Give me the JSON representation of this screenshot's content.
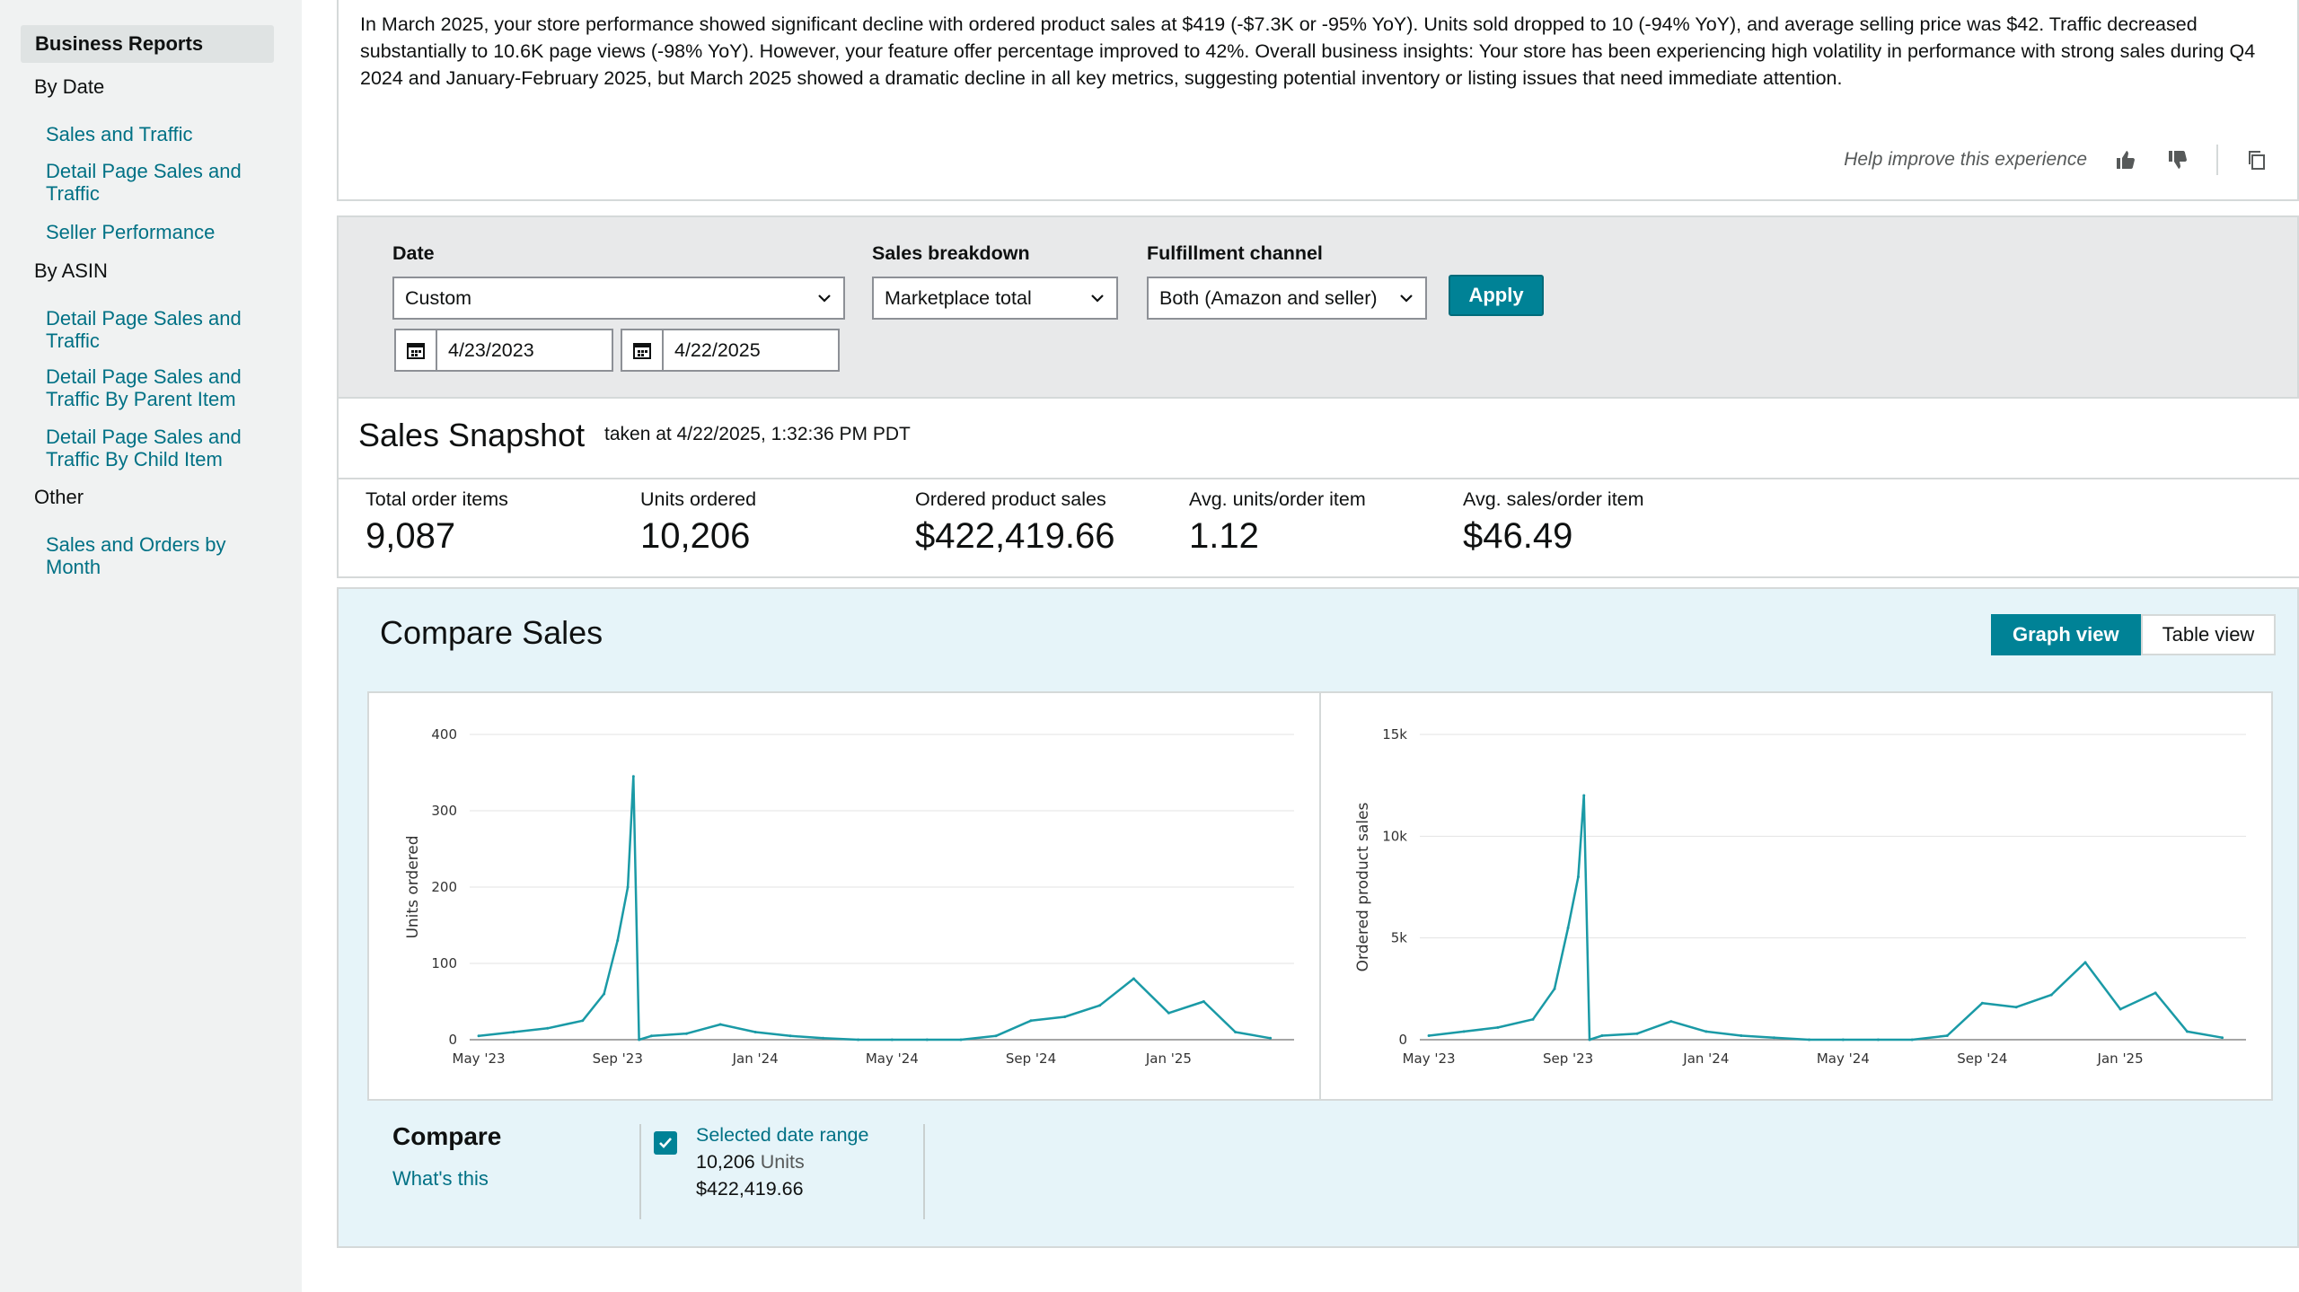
{
  "sidebar": {
    "title": "Business Reports",
    "groups": [
      {
        "label": "By Date",
        "items": [
          "Sales and Traffic",
          "Detail Page Sales and Traffic",
          "Seller Performance"
        ]
      },
      {
        "label": "By ASIN",
        "items": [
          "Detail Page Sales and Traffic",
          "Detail Page Sales and Traffic By Parent Item",
          "Detail Page Sales and Traffic By Child Item"
        ]
      },
      {
        "label": "Other",
        "items": [
          "Sales and Orders by Month"
        ]
      }
    ]
  },
  "insight": {
    "text": "In March 2025, your store performance showed significant decline with ordered product sales at $419 (-$7.3K or -95% YoY). Units sold dropped to 10 (-94% YoY), and average selling price was $42. Traffic decreased substantially to 10.6K page views (-98% YoY). However, your feature offer percentage improved to 42%. Overall business insights: Your store has been experiencing high volatility in performance with strong sales during Q4 2024 and January-February 2025, but March 2025 showed a dramatic decline in all key metrics, suggesting potential inventory or listing issues that need immediate attention.",
    "feedback_label": "Help improve this experience",
    "icons": [
      "thumbs-up-icon",
      "thumbs-down-icon",
      "copy-icon"
    ]
  },
  "filters": {
    "date_label": "Date",
    "date_value": "Custom",
    "start_date": "4/23/2023",
    "end_date": "4/22/2025",
    "breakdown_label": "Sales breakdown",
    "breakdown_value": "Marketplace total",
    "channel_label": "Fulfillment channel",
    "channel_value": "Both (Amazon and seller)",
    "apply_label": "Apply"
  },
  "snapshot": {
    "title": "Sales Snapshot",
    "taken": "taken at 4/22/2025, 1:32:36 PM PDT",
    "metrics": [
      {
        "label": "Total order items",
        "value": "9,087"
      },
      {
        "label": "Units ordered",
        "value": "10,206"
      },
      {
        "label": "Ordered product sales",
        "value": "$422,419.66"
      },
      {
        "label": "Avg. units/order item",
        "value": "1.12"
      },
      {
        "label": "Avg. sales/order item",
        "value": "$46.49"
      }
    ]
  },
  "compare": {
    "title": "Compare Sales",
    "graph_view_label": "Graph view",
    "table_view_label": "Table view",
    "legend_title": "Compare",
    "whats_this": "What's this",
    "range_label": "Selected date range",
    "units_value": "10,206",
    "units_suffix": "Units",
    "sales_value": "$422,419.66"
  },
  "colors": {
    "accent": "#008296",
    "link": "#007185",
    "line": "#1a9aa6",
    "panel_bg": "#e6f4f9",
    "sidebar_bg": "#f0f2f2"
  },
  "chart_data": [
    {
      "type": "line",
      "ylabel": "Units ordered",
      "xlabel": "",
      "ylim": [
        0,
        400
      ],
      "yticks": [
        "0",
        "100",
        "200",
        "300",
        "400"
      ],
      "xticks": [
        "May '23",
        "Sep '23",
        "Jan '24",
        "May '24",
        "Sep '24",
        "Jan '25"
      ],
      "grid": true,
      "series": [
        {
          "x": [
            "2023-05",
            "2023-06",
            "2023-07",
            "2023-08",
            "2023-08-20",
            "2023-09-01",
            "2023-09-10",
            "2023-09-15",
            "2023-09-20",
            "2023-10",
            "2023-11",
            "2023-12",
            "2024-01",
            "2024-02",
            "2024-03",
            "2024-04",
            "2024-05",
            "2024-06",
            "2024-07",
            "2024-08",
            "2024-09",
            "2024-10",
            "2024-11",
            "2024-12",
            "2025-01",
            "2025-02",
            "2025-03",
            "2025-04"
          ],
          "y": [
            5,
            10,
            15,
            25,
            60,
            130,
            200,
            345,
            0,
            5,
            8,
            20,
            10,
            5,
            2,
            0,
            0,
            0,
            0,
            5,
            25,
            30,
            45,
            80,
            35,
            50,
            10,
            2
          ]
        }
      ]
    },
    {
      "type": "line",
      "ylabel": "Ordered product sales",
      "xlabel": "",
      "ylim": [
        0,
        15000
      ],
      "yticks": [
        "0",
        "5k",
        "10k",
        "15k"
      ],
      "xticks": [
        "May '23",
        "Sep '23",
        "Jan '24",
        "May '24",
        "Sep '24",
        "Jan '25"
      ],
      "grid": true,
      "series": [
        {
          "x": [
            "2023-05",
            "2023-06",
            "2023-07",
            "2023-08",
            "2023-08-20",
            "2023-09-01",
            "2023-09-10",
            "2023-09-15",
            "2023-09-20",
            "2023-10",
            "2023-11",
            "2023-12",
            "2024-01",
            "2024-02",
            "2024-03",
            "2024-04",
            "2024-05",
            "2024-06",
            "2024-07",
            "2024-08",
            "2024-09",
            "2024-10",
            "2024-11",
            "2024-12",
            "2025-01",
            "2025-02",
            "2025-03",
            "2025-04"
          ],
          "y": [
            200,
            400,
            600,
            1000,
            2500,
            5500,
            8000,
            12000,
            0,
            200,
            300,
            900,
            400,
            200,
            100,
            0,
            0,
            0,
            0,
            200,
            1800,
            1600,
            2200,
            3800,
            1500,
            2300,
            400,
            100
          ]
        }
      ]
    }
  ]
}
